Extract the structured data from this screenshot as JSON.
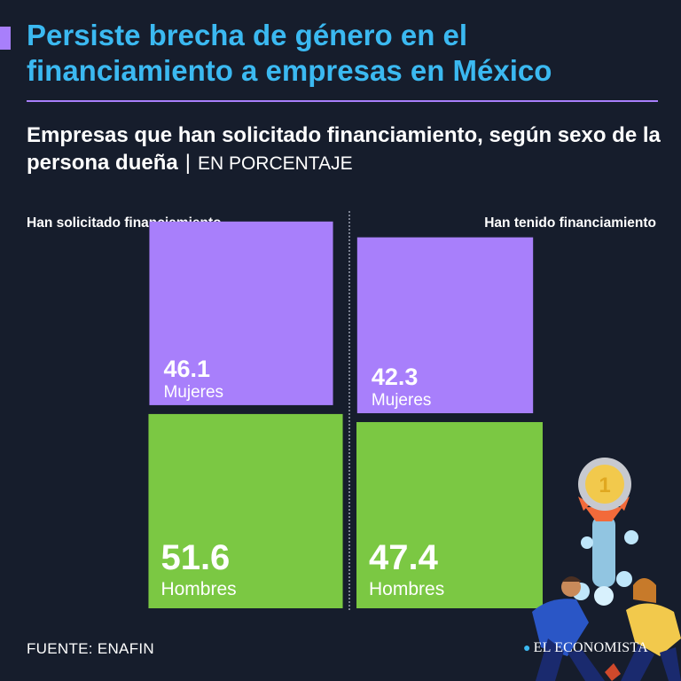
{
  "title": "Persiste brecha de género en el financiamiento a empresas en México",
  "subtitle_main": "Empresas que han solicitado financiamiento, según sexo de la persona dueña",
  "subtitle_sep": "|",
  "subtitle_unit": "EN PORCENTAJE",
  "source": "FUENTE: ENAFIN",
  "brand": "EL ECONOMISTA",
  "colors": {
    "background": "#161d2c",
    "title": "#3bb9f1",
    "accent": "#a87ffb",
    "mujeres": "#a87ffb",
    "hombres": "#7bc843"
  },
  "chart_data": [
    {
      "type": "bar",
      "title": "Han solicitado financiamiento",
      "series": [
        {
          "name": "Mujeres",
          "value": 46.1
        },
        {
          "name": "Hombres",
          "value": 51.6
        }
      ]
    },
    {
      "type": "bar",
      "title": "Han tenido financiamiento",
      "series": [
        {
          "name": "Mujeres",
          "value": 42.3
        },
        {
          "name": "Hombres",
          "value": 47.4
        }
      ]
    }
  ]
}
